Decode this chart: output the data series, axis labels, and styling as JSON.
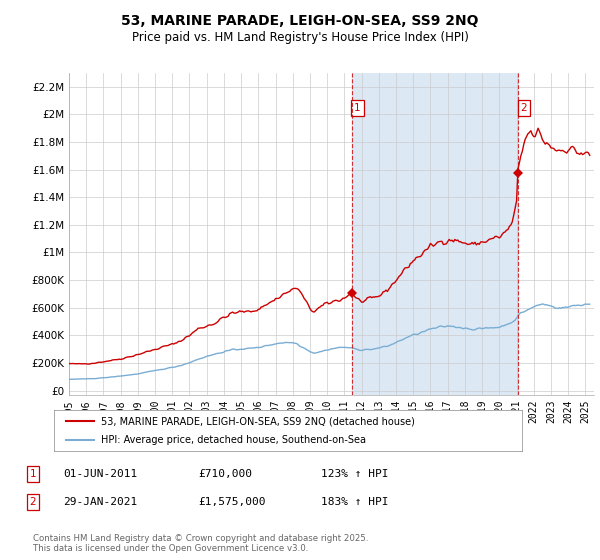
{
  "title": "53, MARINE PARADE, LEIGH-ON-SEA, SS9 2NQ",
  "subtitle": "Price paid vs. HM Land Registry's House Price Index (HPI)",
  "ylabel_ticks": [
    "£0",
    "£200K",
    "£400K",
    "£600K",
    "£800K",
    "£1M",
    "£1.2M",
    "£1.4M",
    "£1.6M",
    "£1.8M",
    "£2M",
    "£2.2M"
  ],
  "ytick_values": [
    0,
    200000,
    400000,
    600000,
    800000,
    1000000,
    1200000,
    1400000,
    1600000,
    1800000,
    2000000,
    2200000
  ],
  "ylim": [
    -30000,
    2300000
  ],
  "plot_bg_color": "#ffffff",
  "shade_color": "#dce9f5",
  "red_line_color": "#cc0000",
  "blue_line_color": "#7aadd4",
  "marker1_date_x": 2011.42,
  "marker1_price": 710000,
  "marker2_date_x": 2021.08,
  "marker2_price": 1575000,
  "vline1_x": 2011.42,
  "vline2_x": 2021.08,
  "legend_line1": "53, MARINE PARADE, LEIGH-ON-SEA, SS9 2NQ (detached house)",
  "legend_line2": "HPI: Average price, detached house, Southend-on-Sea",
  "annotation1": [
    "1",
    "01-JUN-2011",
    "£710,000",
    "123% ↑ HPI"
  ],
  "annotation2": [
    "2",
    "29-JAN-2021",
    "£1,575,000",
    "183% ↑ HPI"
  ],
  "footnote": "Contains HM Land Registry data © Crown copyright and database right 2025.\nThis data is licensed under the Open Government Licence v3.0.",
  "xlim": [
    1995.0,
    2025.5
  ],
  "xticks": [
    1995,
    1996,
    1997,
    1998,
    1999,
    2000,
    2001,
    2002,
    2003,
    2004,
    2005,
    2006,
    2007,
    2008,
    2009,
    2010,
    2011,
    2012,
    2013,
    2014,
    2015,
    2016,
    2017,
    2018,
    2019,
    2020,
    2021,
    2022,
    2023,
    2024,
    2025
  ]
}
